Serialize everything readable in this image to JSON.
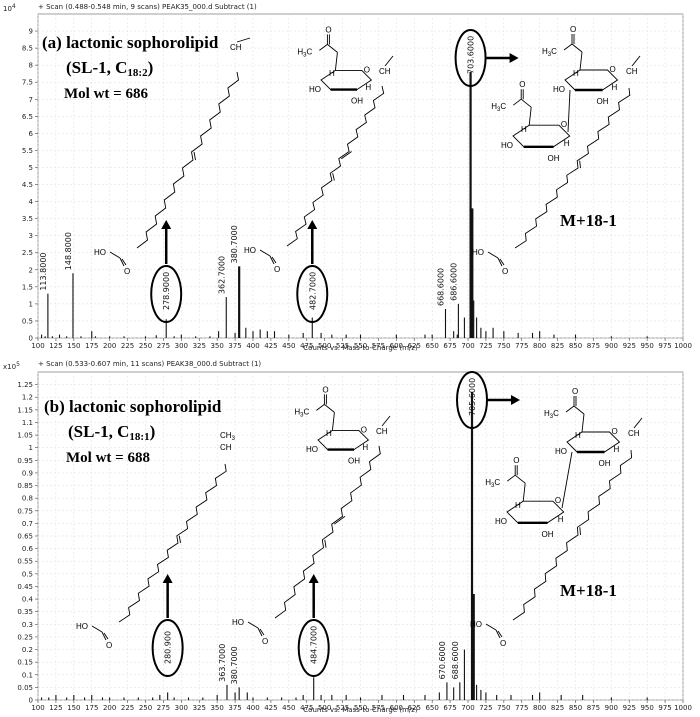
{
  "chart_data": [
    {
      "type": "bar",
      "scale_label": "10",
      "scale_exp": "4",
      "header": "+ Scan (0.488-0.548 min, 9 scans) PEAK35_000.d  Subtract (1)",
      "xlabel": "Counts vs. Mass-to-Charge (m/z)",
      "xlim": [
        100,
        1000
      ],
      "ylim": [
        0,
        9.5
      ],
      "xticks": [
        100,
        125,
        150,
        175,
        200,
        225,
        250,
        275,
        300,
        325,
        350,
        375,
        400,
        425,
        450,
        475,
        500,
        525,
        550,
        575,
        600,
        625,
        650,
        675,
        700,
        725,
        750,
        775,
        800,
        825,
        850,
        875,
        900,
        925,
        950,
        975,
        1000
      ],
      "yticks": [
        "0",
        "0.5",
        "1",
        "1.5",
        "2",
        "2.5",
        "3",
        "3.5",
        "4",
        "4.5",
        "5",
        "5.5",
        "6",
        "6.5",
        "7",
        "7.5",
        "8",
        "8.5",
        "9"
      ],
      "compound": "(a) lactonic sophorolipid",
      "formula": "(SL-1, C",
      "formula_sub": "18:2",
      "formula_end": ")",
      "molwt": "Mol wt = 686",
      "adduct": "M+18-1",
      "x": [
        105,
        110,
        113.8,
        120,
        130,
        140,
        148.8,
        160,
        175,
        180,
        200,
        220,
        250,
        265,
        278.9,
        290,
        300,
        320,
        340,
        352,
        362.7,
        375,
        380.7,
        390,
        400,
        410,
        420,
        430,
        450,
        470,
        482.7,
        495,
        510,
        530,
        550,
        600,
        640,
        650,
        668.6,
        680,
        685,
        686.6,
        695,
        703.6,
        706,
        708,
        712,
        718,
        725,
        735,
        750,
        770,
        790,
        800,
        820,
        850,
        900,
        950
      ],
      "values": [
        0.1,
        0.05,
        1.3,
        0.05,
        0.1,
        0.05,
        1.9,
        0.05,
        0.2,
        0.05,
        0.05,
        0.05,
        0.05,
        0.08,
        0.55,
        0.05,
        0.1,
        0.05,
        0.05,
        0.2,
        1.2,
        0.15,
        2.1,
        0.3,
        0.2,
        0.25,
        0.2,
        0.2,
        0.1,
        0.15,
        0.6,
        0.15,
        0.1,
        0.1,
        0.1,
        0.1,
        0.1,
        0.1,
        0.85,
        0.2,
        0.1,
        1.0,
        0.6,
        7.8,
        3.8,
        1.1,
        0.6,
        0.3,
        0.2,
        0.3,
        0.2,
        0.15,
        0.15,
        0.2,
        0.1,
        0.1,
        0.05,
        0.05
      ],
      "labels": [
        {
          "x": 113.8,
          "text": "113.8000"
        },
        {
          "x": 148.8,
          "text": "148.8000"
        },
        {
          "x": 362.7,
          "text": "362.7000"
        },
        {
          "x": 380.7,
          "text": "380.7000"
        },
        {
          "x": 668.6,
          "text": "668.6000"
        },
        {
          "x": 686.6,
          "text": "686.6000"
        }
      ],
      "circled": [
        {
          "x": 278.9,
          "text": "278.9000"
        },
        {
          "x": 482.7,
          "text": "482.7000"
        },
        {
          "x": 703.6,
          "text": "703.6000"
        }
      ]
    },
    {
      "type": "bar",
      "scale_label": "x10",
      "scale_exp": "5",
      "header": "+ Scan (0.533-0.607 min, 11 scans) PEAK38_000.d  Subtract (1)",
      "xlabel": "Counts vs. Mass-to-Charge (m/z)",
      "xlim": [
        100,
        1000
      ],
      "ylim": [
        0,
        1.3
      ],
      "xticks": [
        100,
        125,
        150,
        175,
        200,
        225,
        250,
        275,
        300,
        325,
        350,
        375,
        400,
        425,
        450,
        475,
        500,
        525,
        550,
        575,
        600,
        625,
        650,
        675,
        700,
        725,
        750,
        775,
        800,
        825,
        850,
        875,
        900,
        925,
        950,
        975,
        1000
      ],
      "yticks": [
        "0",
        "0.05",
        "0.1",
        "0.15",
        "0.2",
        "0.25",
        "0.3",
        "0.35",
        "0.4",
        "0.45",
        "0.5",
        "0.55",
        "0.6",
        "0.65",
        "0.7",
        "0.75",
        "0.8",
        "0.85",
        "0.9",
        "0.95",
        "1",
        "1.05",
        "1.1",
        "1.15",
        "1.2",
        "1.25"
      ],
      "compound": "(b) lactonic sophorolipid",
      "formula": "(SL-1, C",
      "formula_sub": "18:1",
      "formula_end": ")",
      "molwt": "Mol wt = 688",
      "adduct": "M+18-1",
      "x": [
        105,
        115,
        125,
        140,
        150,
        165,
        175,
        190,
        200,
        220,
        240,
        260,
        270,
        280.9,
        290,
        310,
        330,
        350,
        363.7,
        375,
        380.7,
        392,
        400,
        420,
        440,
        460,
        470,
        484.7,
        495,
        510,
        530,
        550,
        580,
        610,
        640,
        660,
        670.6,
        680,
        688.6,
        695,
        705.6,
        708,
        712,
        718,
        725,
        740,
        760,
        790,
        800,
        830,
        860,
        900,
        950
      ],
      "values": [
        0.01,
        0.01,
        0.02,
        0.01,
        0.02,
        0.01,
        0.02,
        0.01,
        0.01,
        0.01,
        0.01,
        0.01,
        0.02,
        0.03,
        0.01,
        0.01,
        0.01,
        0.02,
        0.06,
        0.03,
        0.05,
        0.03,
        0.01,
        0.01,
        0.01,
        0.01,
        0.02,
        0.09,
        0.02,
        0.02,
        0.02,
        0.01,
        0.02,
        0.02,
        0.02,
        0.03,
        0.07,
        0.05,
        0.07,
        0.2,
        1.22,
        0.42,
        0.06,
        0.04,
        0.03,
        0.02,
        0.02,
        0.02,
        0.03,
        0.02,
        0.02,
        0.01,
        0.01
      ],
      "labels": [
        {
          "x": 363.7,
          "text": "363.7000"
        },
        {
          "x": 380.7,
          "text": "380.7000"
        },
        {
          "x": 670.6,
          "text": "670.6000"
        },
        {
          "x": 688.6,
          "text": "688.6000"
        }
      ],
      "circled": [
        {
          "x": 280.9,
          "text": "280.900"
        },
        {
          "x": 484.7,
          "text": "484.7000"
        },
        {
          "x": 705.6,
          "text": "705.6000"
        }
      ]
    }
  ],
  "chem": {
    "ch": "CH",
    "ch3": "CH",
    "ch3_sub": "3",
    "ho": "HO",
    "o": "O",
    "oh": "OH",
    "h": "H",
    "h3c": "H",
    "h3c_sub": "3",
    "h3c_end": "C"
  }
}
